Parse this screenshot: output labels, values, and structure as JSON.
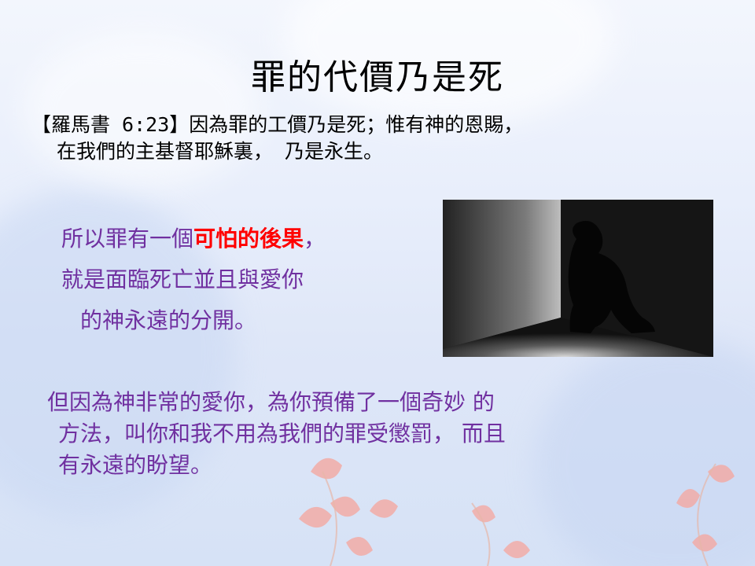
{
  "slide": {
    "title": "罪的代價乃是死",
    "verse": {
      "line1": "【羅馬書 6:23】因為罪的工價乃是死；惟有神的恩賜，",
      "line2": "在我們的主基督耶穌裏，  乃是永生。"
    },
    "consequence": {
      "line1_prefix": "所以罪有一個",
      "line1_emphasis": "可怕的後果",
      "line1_suffix": "，",
      "line2": "就是面臨死亡並且與愛你",
      "line3": "的神永遠的分開。"
    },
    "hope": {
      "line1": "但因為神非常的愛你，為你預備了一個奇妙 的",
      "line2": "方法，叫你和我不用為我們的罪受懲罰，  而且",
      "line3": "有永遠的盼望。"
    }
  },
  "colors": {
    "body_text": "#000000",
    "purple_text": "#7030a0",
    "emphasis_red": "#ff0000"
  }
}
